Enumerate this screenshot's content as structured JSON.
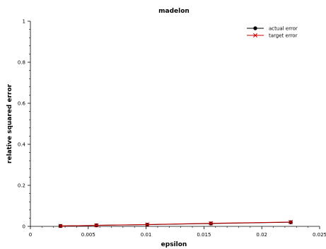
{
  "chart_data": {
    "type": "line",
    "title": "madelon",
    "xlabel": "epsilon",
    "ylabel": "relative squared error",
    "xlim": [
      0,
      0.025
    ],
    "ylim": [
      0,
      1
    ],
    "xticks": [
      {
        "value": 0,
        "label": "0"
      },
      {
        "value": 0.005,
        "label": "0.005"
      },
      {
        "value": 0.01,
        "label": "0.01"
      },
      {
        "value": 0.015,
        "label": "0.015"
      },
      {
        "value": 0.02,
        "label": "0.02"
      },
      {
        "value": 0.025,
        "label": "0.025"
      }
    ],
    "yticks": [
      {
        "value": 0,
        "label": "0"
      },
      {
        "value": 0.2,
        "label": "0.2"
      },
      {
        "value": 0.4,
        "label": "0.4"
      },
      {
        "value": 0.6,
        "label": "0.6"
      },
      {
        "value": 0.8,
        "label": "0.8"
      },
      {
        "value": 1,
        "label": "1"
      }
    ],
    "legend_position": "top-right",
    "grid": false,
    "series": [
      {
        "name": "actual error",
        "color": "#000000",
        "marker": "circle",
        "x": [
          0.0026,
          0.0057,
          0.0101,
          0.0156,
          0.0225
        ],
        "y": [
          0.002,
          0.005,
          0.008,
          0.014,
          0.02
        ]
      },
      {
        "name": "target error",
        "color": "#cc0000",
        "marker": "x",
        "x": [
          0.0026,
          0.0057,
          0.0101,
          0.0156,
          0.0225
        ],
        "y": [
          0.002,
          0.005,
          0.009,
          0.015,
          0.021
        ]
      }
    ]
  }
}
